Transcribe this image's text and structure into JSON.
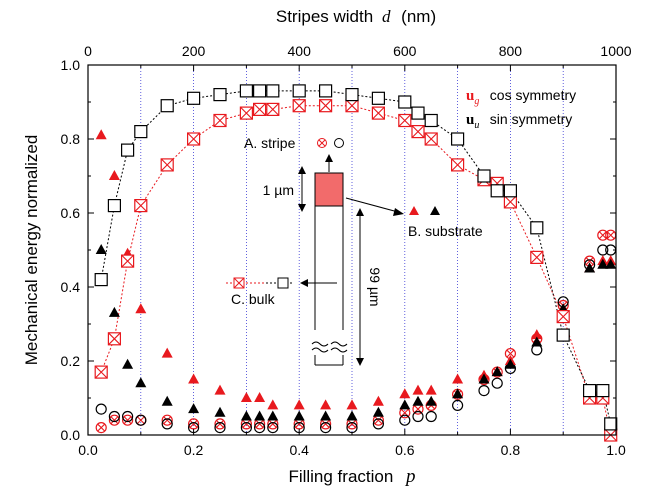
{
  "chart_data": {
    "type": "scatter",
    "xlabel": "Filling fraction",
    "xlabel_var": "p",
    "ylabel": "Mechanical energy normalized",
    "x2label": "Stripes width",
    "x2label_var": "d",
    "x2label_unit": "(nm)",
    "xlim": [
      0,
      1.0
    ],
    "ylim": [
      0,
      1.0
    ],
    "x2lim": [
      0,
      1000
    ],
    "xticks": [
      "0.0",
      "0.2",
      "0.4",
      "0.6",
      "0.8",
      "1.0"
    ],
    "yticks": [
      "0.0",
      "0.2",
      "0.4",
      "0.6",
      "0.8",
      "1.0"
    ],
    "x2ticks": [
      "0",
      "200",
      "400",
      "600",
      "800",
      "1000"
    ],
    "grid": "vertical dotted lines",
    "legend": {
      "cos": {
        "symbol": "u",
        "sub": "g",
        "text": "cos symmetry",
        "color": "#e8191e"
      },
      "sin": {
        "symbol": "u",
        "sub": "u",
        "text": "sin symmetry",
        "color": "#000000"
      }
    },
    "annotations": {
      "stripe": "A. stripe",
      "substrate": "B. substrate",
      "bulk": "C. bulk",
      "dim1": "1 µm",
      "dim2": "99 µm"
    },
    "x": [
      0.025,
      0.05,
      0.075,
      0.1,
      0.15,
      0.2,
      0.25,
      0.3,
      0.325,
      0.35,
      0.4,
      0.45,
      0.5,
      0.55,
      0.6,
      0.625,
      0.65,
      0.7,
      0.75,
      0.775,
      0.8,
      0.85,
      0.9,
      0.95,
      0.975,
      0.99
    ],
    "series": [
      {
        "name": "cos stripe",
        "values": [
          0.02,
          0.04,
          0.04,
          0.04,
          0.04,
          0.03,
          0.03,
          0.03,
          0.03,
          0.03,
          0.03,
          0.03,
          0.03,
          0.04,
          0.06,
          0.07,
          0.08,
          0.11,
          0.15,
          0.17,
          0.22,
          0.26,
          0.35,
          0.47,
          0.54,
          0.54
        ]
      },
      {
        "name": "sin stripe",
        "values": [
          0.07,
          0.05,
          0.05,
          0.04,
          0.03,
          0.02,
          0.02,
          0.02,
          0.02,
          0.02,
          0.02,
          0.02,
          0.02,
          0.03,
          0.04,
          0.05,
          0.05,
          0.08,
          0.12,
          0.14,
          0.18,
          0.23,
          0.36,
          0.46,
          0.5,
          0.5
        ]
      },
      {
        "name": "cos substrate",
        "values": [
          0.81,
          0.7,
          0.49,
          0.34,
          0.22,
          0.15,
          0.12,
          0.1,
          0.1,
          0.08,
          0.08,
          0.08,
          0.08,
          0.09,
          0.11,
          0.12,
          0.12,
          0.15,
          0.16,
          0.17,
          0.2,
          0.27,
          0.34,
          0.45,
          0.47,
          0.47
        ]
      },
      {
        "name": "sin substrate",
        "values": [
          0.5,
          0.33,
          0.19,
          0.14,
          0.09,
          0.07,
          0.06,
          0.05,
          0.05,
          0.05,
          0.05,
          0.05,
          0.05,
          0.06,
          0.08,
          0.09,
          0.09,
          0.11,
          0.15,
          0.17,
          0.19,
          0.25,
          0.34,
          0.45,
          0.46,
          0.46
        ]
      },
      {
        "name": "cos bulk",
        "values": [
          0.17,
          0.26,
          0.47,
          0.62,
          0.73,
          0.8,
          0.85,
          0.87,
          0.88,
          0.88,
          0.89,
          0.89,
          0.89,
          0.87,
          0.85,
          0.82,
          0.8,
          0.73,
          0.69,
          0.68,
          0.63,
          0.48,
          0.32,
          0.1,
          0.1,
          0.0
        ]
      },
      {
        "name": "sin bulk",
        "values": [
          0.42,
          0.62,
          0.77,
          0.82,
          0.89,
          0.91,
          0.92,
          0.93,
          0.93,
          0.93,
          0.93,
          0.93,
          0.92,
          0.91,
          0.9,
          0.87,
          0.85,
          0.8,
          0.7,
          0.66,
          0.66,
          0.56,
          0.27,
          0.12,
          0.12,
          0.03
        ]
      }
    ]
  }
}
